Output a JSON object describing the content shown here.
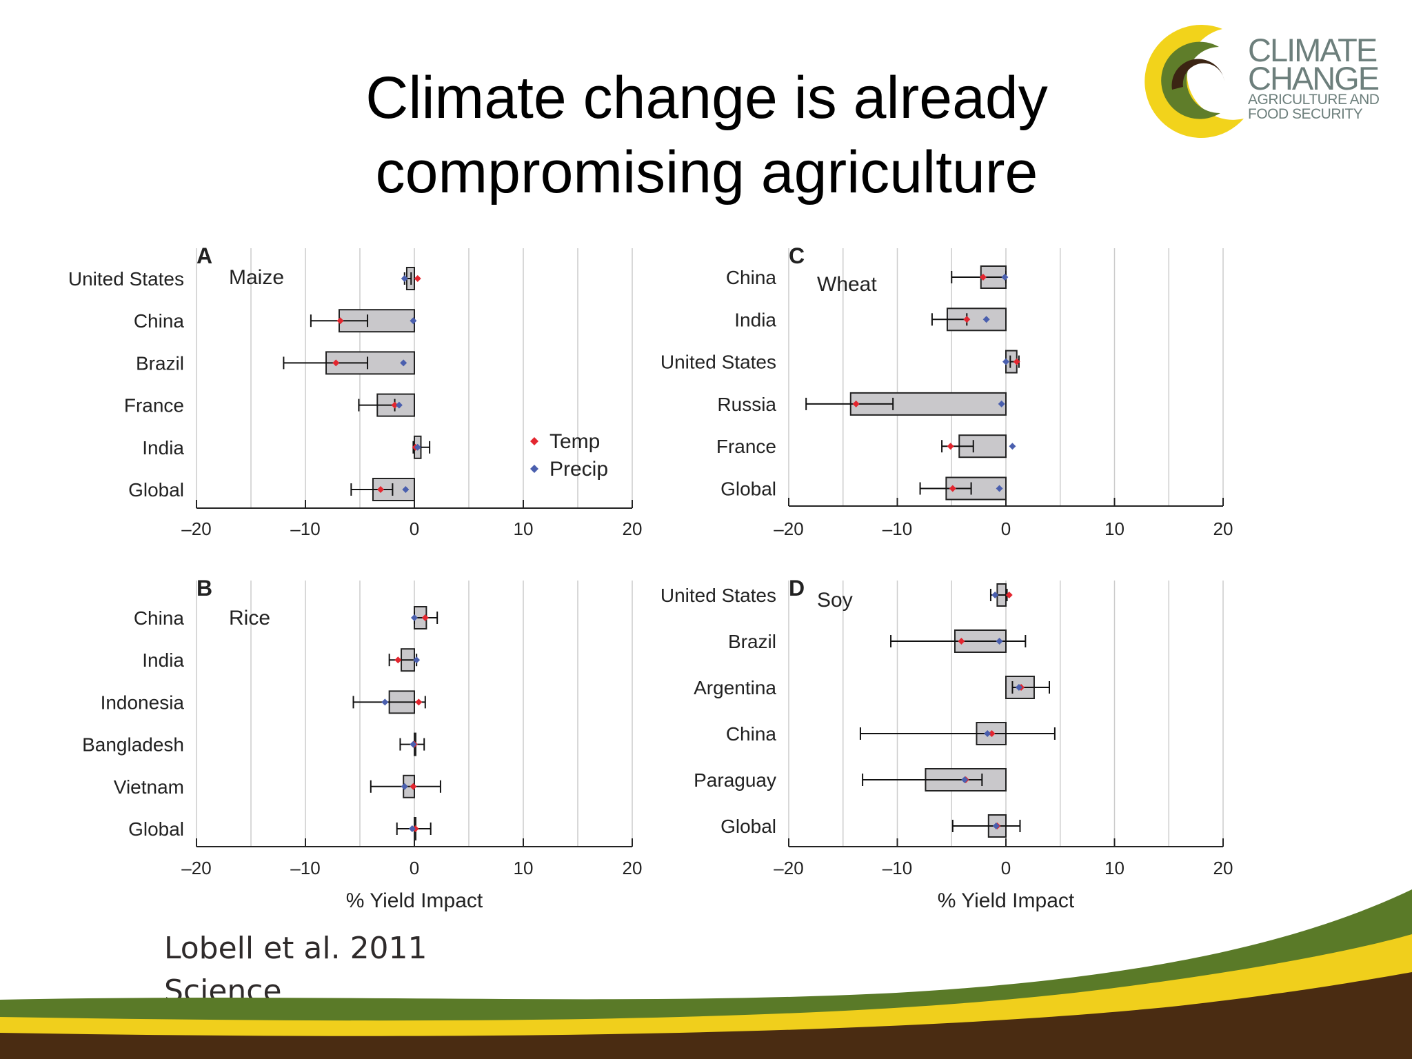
{
  "slide": {
    "title": "Climate change is already\ncompromising agriculture",
    "citation_line1": "Lobell et al. 2011",
    "citation_line2": "Science"
  },
  "logo": {
    "line1": "CLIMATE",
    "line2": "CHANGE",
    "line3": "AGRICULTURE AND",
    "line4": "FOOD SECURITY",
    "colors": {
      "yellow": "#f2d31b",
      "green": "#5f7d2a",
      "brown": "#3b2413",
      "text": "#6d7f7c"
    }
  },
  "colors": {
    "bar_fill": "#c9c8cb",
    "temp_marker": "#e3262f",
    "precip_marker": "#4a5fae",
    "grid": "#cccccc",
    "footer_green": "#5a7a28",
    "footer_yellow": "#f0cf1c",
    "footer_brown": "#4a2c12"
  },
  "chart_data": [
    {
      "panel": "A",
      "type": "bar",
      "orientation": "horizontal",
      "crop": "Maize",
      "categories": [
        "United States",
        "China",
        "Brazil",
        "France",
        "India",
        "Global"
      ],
      "values": [
        -0.7,
        -6.9,
        -8.1,
        -3.4,
        0.6,
        -3.8
      ],
      "error_low": [
        -0.9,
        -9.5,
        -12.0,
        -5.1,
        -0.1,
        -5.8
      ],
      "error_high": [
        -0.3,
        -4.3,
        -4.3,
        -1.8,
        1.4,
        -2.0
      ],
      "temp": [
        0.3,
        -6.8,
        -7.2,
        -1.8,
        0.1,
        -3.1
      ],
      "precip": [
        -0.9,
        -0.1,
        -1.0,
        -1.4,
        0.3,
        -0.8
      ],
      "xlim": [
        -20,
        20
      ],
      "xticks": [
        "–20",
        "–10",
        "0",
        "10",
        "20"
      ],
      "xlabel": "",
      "legend": [
        "Temp",
        "Precip"
      ]
    },
    {
      "panel": "B",
      "type": "bar",
      "orientation": "horizontal",
      "crop": "Rice",
      "categories": [
        "China",
        "India",
        "Indonesia",
        "Bangladesh",
        "Vietnam",
        "Global"
      ],
      "values": [
        1.1,
        -1.2,
        -2.3,
        0.0,
        -1.0,
        0.0
      ],
      "error_low": [
        0.0,
        -2.3,
        -5.6,
        -1.3,
        -4.0,
        -1.6
      ],
      "error_high": [
        2.1,
        0.2,
        1.0,
        0.9,
        2.4,
        1.5
      ],
      "temp": [
        1.0,
        -1.5,
        0.4,
        0.0,
        -0.1,
        0.1
      ],
      "precip": [
        0.0,
        0.2,
        -2.7,
        -0.1,
        -0.9,
        -0.2
      ],
      "xlim": [
        -20,
        20
      ],
      "xticks": [
        "–20",
        "–10",
        "0",
        "10",
        "20"
      ],
      "xlabel": "% Yield Impact"
    },
    {
      "panel": "C",
      "type": "bar",
      "orientation": "horizontal",
      "crop": "Wheat",
      "categories": [
        "China",
        "India",
        "United States",
        "Russia",
        "France",
        "Global"
      ],
      "values": [
        -2.3,
        -5.4,
        1.0,
        -14.3,
        -4.3,
        -5.5
      ],
      "error_low": [
        -5.0,
        -6.8,
        0.4,
        -18.4,
        -5.9,
        -7.9
      ],
      "error_high": [
        0.0,
        -3.6,
        1.2,
        -10.4,
        -3.0,
        -3.2
      ],
      "temp": [
        -2.1,
        -3.6,
        1.0,
        -13.8,
        -5.1,
        -4.9
      ],
      "precip": [
        -0.1,
        -1.8,
        0.0,
        -0.4,
        0.6,
        -0.6
      ],
      "xlim": [
        -20,
        20
      ],
      "xticks": [
        "–20",
        "–10",
        "0",
        "10",
        "20"
      ],
      "xlabel": ""
    },
    {
      "panel": "D",
      "type": "bar",
      "orientation": "horizontal",
      "crop": "Soy",
      "categories": [
        "United States",
        "Brazil",
        "Argentina",
        "China",
        "Paraguay",
        "Global"
      ],
      "values": [
        -0.8,
        -4.7,
        2.6,
        -2.7,
        -7.4,
        -1.6
      ],
      "error_low": [
        -1.4,
        -10.6,
        0.6,
        -13.4,
        -13.2,
        -4.9
      ],
      "error_high": [
        0.1,
        1.8,
        4.0,
        4.5,
        -2.2,
        1.3
      ],
      "temp": [
        0.3,
        -4.1,
        1.4,
        -1.3,
        -3.7,
        -0.8
      ],
      "precip": [
        -1.0,
        -0.6,
        1.2,
        -1.7,
        -3.8,
        -0.9
      ],
      "xlim": [
        -20,
        20
      ],
      "xticks": [
        "–20",
        "–10",
        "0",
        "10",
        "20"
      ],
      "xlabel": "% Yield Impact"
    }
  ]
}
